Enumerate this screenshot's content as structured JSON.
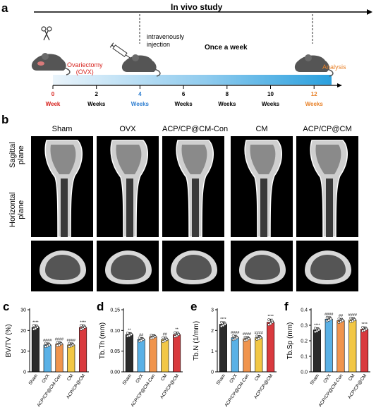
{
  "panel_letters": {
    "a": "a",
    "b": "b",
    "c": "c",
    "d": "d",
    "e": "e",
    "f": "f"
  },
  "timeline": {
    "title": "In vivo study",
    "ovx_label": "Ovariectomy\n(OVX)",
    "injection_label": "intravenously\ninjection",
    "frequency_label": "Once a week",
    "analysis_label": "Analysis",
    "ticks": [
      {
        "num": "0",
        "unit": "Week",
        "color": "#d7231e"
      },
      {
        "num": "2",
        "unit": "Weeks",
        "color": "#000000"
      },
      {
        "num": "4",
        "unit": "Weeks",
        "color": "#2f7fd1"
      },
      {
        "num": "6",
        "unit": "Weeks",
        "color": "#000000"
      },
      {
        "num": "8",
        "unit": "Weeks",
        "color": "#000000"
      },
      {
        "num": "10",
        "unit": "Weeks",
        "color": "#000000"
      },
      {
        "num": "12",
        "unit": "Weeks",
        "color": "#e8822a"
      }
    ]
  },
  "micro_ct": {
    "groups": [
      "Sham",
      "OVX",
      "ACP/CP@CM-Con",
      "CM",
      "ACP/CP@CM"
    ],
    "row_labels": [
      "Sagittal\nplane",
      "Horizontal\nplane"
    ]
  },
  "colors": {
    "Sham": "#2b2b2b",
    "OVX": "#5ab1e6",
    "ACP/CP@CM-Con": "#f0944d",
    "CM": "#f2c745",
    "ACP/CP@CM": "#d93a3e"
  },
  "chart_data": [
    {
      "type": "bar",
      "panel": "c",
      "ylabel": "BV/TV (%)",
      "ylim": [
        0,
        30
      ],
      "yticks": [
        0,
        10,
        20,
        30
      ],
      "categories": [
        "Sham",
        "OVX",
        "ACP/CP@CM-Con",
        "CM",
        "ACP/CP@CM"
      ],
      "values": [
        21.5,
        13,
        13.5,
        13,
        21.5
      ],
      "errors": [
        1.2,
        1.0,
        1.0,
        1.0,
        1.2
      ],
      "significance": [
        "****",
        "####",
        "####",
        "####",
        "****"
      ]
    },
    {
      "type": "bar",
      "panel": "d",
      "ylabel": "Tb.Th (mm)",
      "ylim": [
        0,
        0.15
      ],
      "yticks": [
        0.0,
        0.05,
        0.1,
        0.15
      ],
      "categories": [
        "Sham",
        "OVX",
        "ACP/CP@CM-Con",
        "CM",
        "ACP/CP@CM"
      ],
      "values": [
        0.09,
        0.078,
        0.085,
        0.078,
        0.09
      ],
      "errors": [
        0.005,
        0.005,
        0.005,
        0.006,
        0.006
      ],
      "significance": [
        "**",
        "##",
        "",
        "##",
        "**"
      ]
    },
    {
      "type": "bar",
      "panel": "e",
      "ylabel": "Tb.N (1/mm)",
      "ylim": [
        0,
        3
      ],
      "yticks": [
        0,
        1,
        2,
        3
      ],
      "categories": [
        "Sham",
        "OVX",
        "ACP/CP@CM-Con",
        "CM",
        "ACP/CP@CM"
      ],
      "values": [
        2.3,
        1.65,
        1.6,
        1.65,
        2.4
      ],
      "errors": [
        0.12,
        0.12,
        0.1,
        0.1,
        0.15
      ],
      "significance": [
        "****",
        "####",
        "####",
        "####",
        "****"
      ]
    },
    {
      "type": "bar",
      "panel": "f",
      "ylabel": "Tb.Sp (mm)",
      "ylim": [
        0,
        0.4
      ],
      "yticks": [
        0.0,
        0.1,
        0.2,
        0.3,
        0.4
      ],
      "categories": [
        "Sham",
        "OVX",
        "ACP/CP@CM-Con",
        "CM",
        "ACP/CP@CM"
      ],
      "values": [
        0.27,
        0.34,
        0.33,
        0.335,
        0.275
      ],
      "errors": [
        0.015,
        0.015,
        0.015,
        0.015,
        0.015
      ],
      "significance": [
        "****",
        "####",
        "##",
        "####",
        "****"
      ]
    }
  ]
}
